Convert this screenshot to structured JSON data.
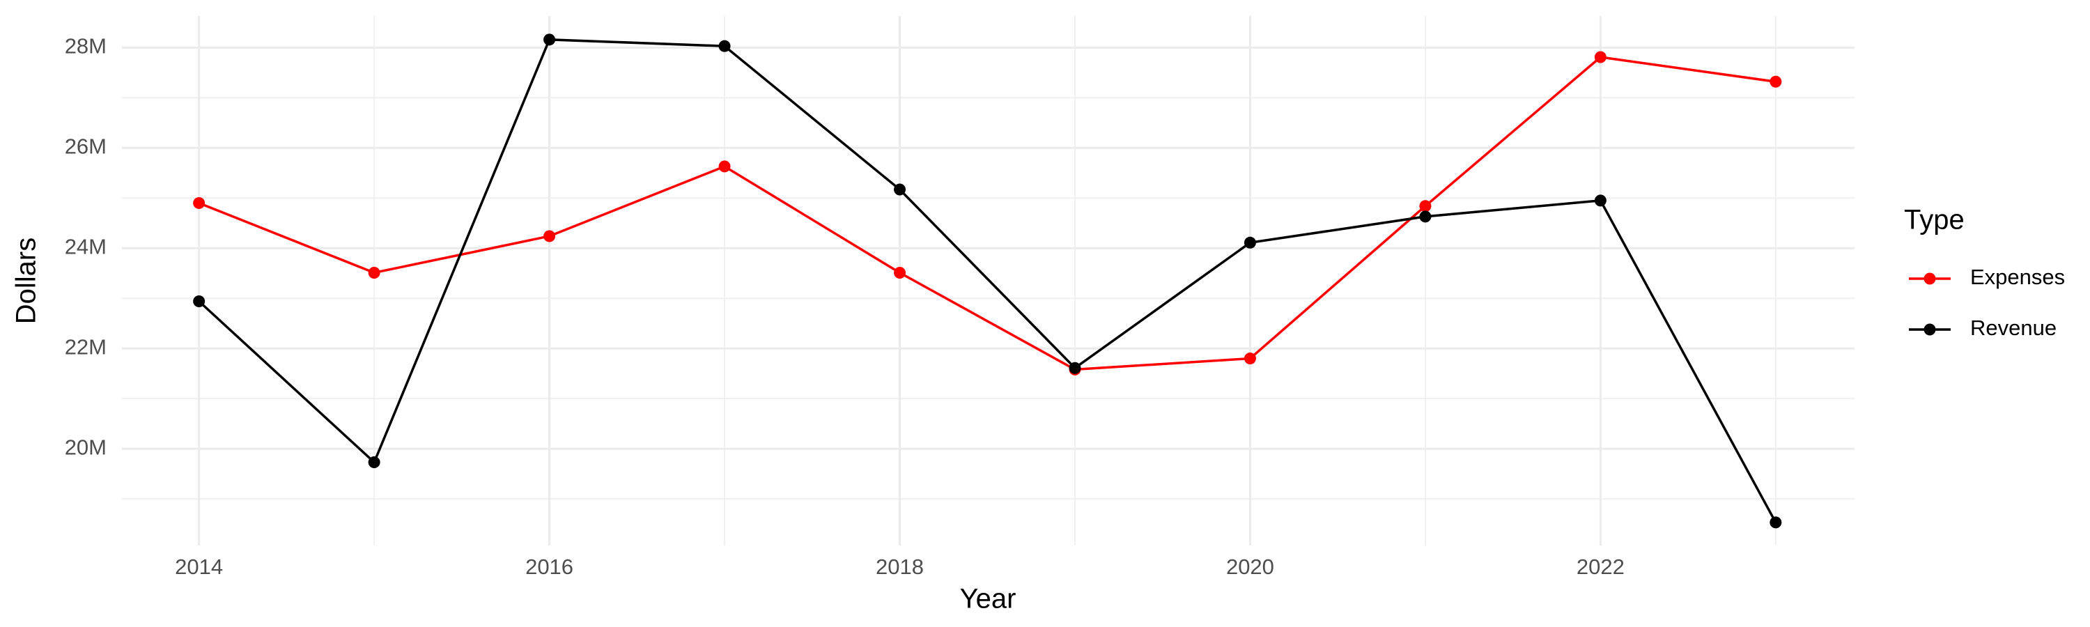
{
  "chart_data": {
    "type": "line",
    "x_label": "Year",
    "y_label": "Dollars",
    "legend_title": "Type",
    "legend_position": "right",
    "x": [
      2014,
      2015,
      2016,
      2017,
      2018,
      2019,
      2020,
      2021,
      2022,
      2023
    ],
    "series": [
      {
        "name": "Expenses",
        "color": "#ff0000",
        "values": [
          24900000,
          23510000,
          24240000,
          25630000,
          23510000,
          21580000,
          21800000,
          24840000,
          27810000,
          27320000
        ]
      },
      {
        "name": "Revenue",
        "color": "#000000",
        "values": [
          22940000,
          19730000,
          28160000,
          28030000,
          25170000,
          21610000,
          24110000,
          24630000,
          24950000,
          18530000
        ]
      }
    ],
    "xlim": [
      2013.56,
      2023.45
    ],
    "xticks": [
      2014,
      2016,
      2018,
      2020,
      2022
    ],
    "xminor": [
      2015,
      2017,
      2019,
      2021,
      2023
    ],
    "ylim": [
      18070000,
      28630000
    ],
    "yticks": [
      {
        "value": 20000000,
        "label": "20M"
      },
      {
        "value": 22000000,
        "label": "22M"
      },
      {
        "value": 24000000,
        "label": "24M"
      },
      {
        "value": 26000000,
        "label": "26M"
      },
      {
        "value": 28000000,
        "label": "28M"
      }
    ],
    "yminor": [
      19000000,
      21000000,
      23000000,
      25000000,
      27000000
    ],
    "grid": true
  }
}
